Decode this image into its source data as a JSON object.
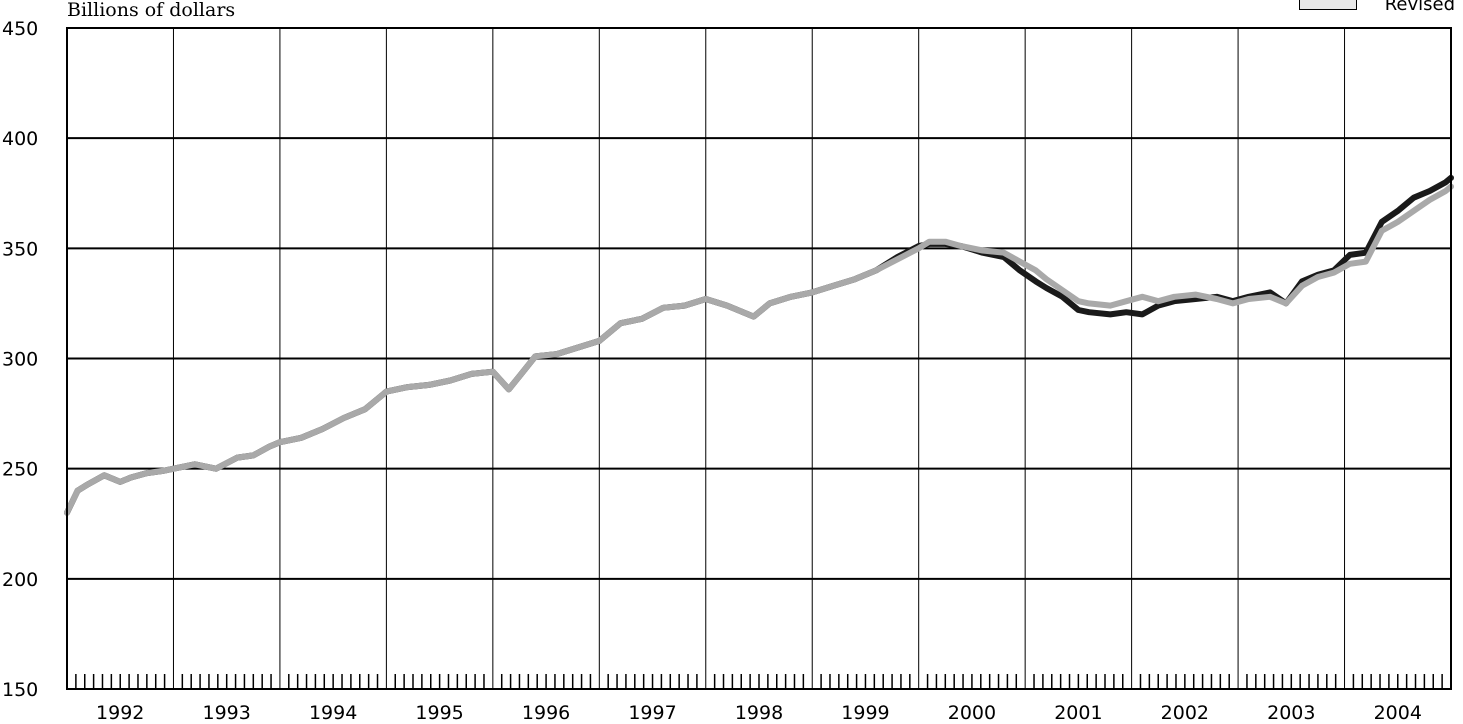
{
  "chart_data": {
    "type": "line",
    "ylabel": "Billions of dollars",
    "ylim": [
      150,
      450
    ],
    "yticks": [
      150,
      200,
      250,
      300,
      350,
      400,
      450
    ],
    "xlim": [
      1992,
      2005
    ],
    "year_labels": [
      "1992",
      "1993",
      "1994",
      "1995",
      "1996",
      "1997",
      "1998",
      "1999",
      "2000",
      "2001",
      "2002",
      "2003",
      "2004"
    ],
    "grid": true,
    "legend": {
      "position": "top-right",
      "visible_entries": [
        "Revised"
      ]
    },
    "series": [
      {
        "name": "",
        "color": "#1a1a1a",
        "x": [
          1992.0,
          1992.1,
          1992.2,
          1992.35,
          1992.5,
          1992.6,
          1992.75,
          1992.9,
          1993.0,
          1993.2,
          1993.4,
          1993.6,
          1993.75,
          1993.9,
          1994.0,
          1994.2,
          1994.4,
          1994.6,
          1994.8,
          1995.0,
          1995.2,
          1995.4,
          1995.6,
          1995.8,
          1996.0,
          1996.15,
          1996.25,
          1996.4,
          1996.6,
          1996.8,
          1997.0,
          1997.2,
          1997.4,
          1997.6,
          1997.8,
          1998.0,
          1998.2,
          1998.45,
          1998.6,
          1998.8,
          1999.0,
          1999.2,
          1999.4,
          1999.6,
          1999.8,
          2000.0,
          2000.1,
          2000.25,
          2000.4,
          2000.6,
          2000.8,
          2000.95,
          2001.1,
          2001.2,
          2001.35,
          2001.5,
          2001.6,
          2001.8,
          2001.95,
          2002.1,
          2002.25,
          2002.4,
          2002.6,
          2002.8,
          2002.95,
          2003.1,
          2003.3,
          2003.45,
          2003.6,
          2003.75,
          2003.9,
          2004.05,
          2004.2,
          2004.35,
          2004.5,
          2004.65,
          2004.8,
          2004.95,
          2005.0
        ],
        "y": [
          230,
          240,
          243,
          247,
          244,
          246,
          248,
          249,
          250,
          252,
          250,
          255,
          256,
          260,
          262,
          264,
          268,
          273,
          277,
          285,
          287,
          288,
          290,
          293,
          294,
          286,
          292,
          301,
          302,
          305,
          308,
          316,
          318,
          323,
          324,
          327,
          324,
          319,
          325,
          328,
          330,
          333,
          336,
          340,
          346,
          351,
          352,
          352,
          351,
          348,
          346,
          340,
          335,
          332,
          328,
          322,
          321,
          320,
          321,
          320,
          324,
          326,
          327,
          328,
          326,
          328,
          330,
          325,
          335,
          338,
          340,
          347,
          348,
          362,
          367,
          373,
          376,
          380,
          382
        ]
      },
      {
        "name": "Revised",
        "color": "#a9a9a9",
        "x": [
          1992.0,
          1992.1,
          1992.2,
          1992.35,
          1992.5,
          1992.6,
          1992.75,
          1992.9,
          1993.0,
          1993.2,
          1993.4,
          1993.6,
          1993.75,
          1993.9,
          1994.0,
          1994.2,
          1994.4,
          1994.6,
          1994.8,
          1995.0,
          1995.2,
          1995.4,
          1995.6,
          1995.8,
          1996.0,
          1996.15,
          1996.25,
          1996.4,
          1996.6,
          1996.8,
          1997.0,
          1997.2,
          1997.4,
          1997.6,
          1997.8,
          1998.0,
          1998.2,
          1998.45,
          1998.6,
          1998.8,
          1999.0,
          1999.2,
          1999.4,
          1999.6,
          1999.8,
          2000.0,
          2000.1,
          2000.25,
          2000.4,
          2000.6,
          2000.8,
          2000.95,
          2001.1,
          2001.2,
          2001.35,
          2001.5,
          2001.6,
          2001.8,
          2001.95,
          2002.1,
          2002.25,
          2002.4,
          2002.6,
          2002.8,
          2002.95,
          2003.1,
          2003.3,
          2003.45,
          2003.6,
          2003.75,
          2003.9,
          2004.05,
          2004.2,
          2004.35,
          2004.5,
          2004.65,
          2004.8,
          2004.95,
          2005.0
        ],
        "y": [
          230,
          240,
          243,
          247,
          244,
          246,
          248,
          249,
          250,
          252,
          250,
          255,
          256,
          260,
          262,
          264,
          268,
          273,
          277,
          285,
          287,
          288,
          290,
          293,
          294,
          286,
          292,
          301,
          302,
          305,
          308,
          316,
          318,
          323,
          324,
          327,
          324,
          319,
          325,
          328,
          330,
          333,
          336,
          340,
          345,
          350,
          353,
          353,
          351,
          349,
          348,
          344,
          340,
          336,
          331,
          326,
          325,
          324,
          326,
          328,
          326,
          328,
          329,
          327,
          325,
          327,
          328,
          325,
          333,
          337,
          339,
          343,
          344,
          358,
          362,
          367,
          372,
          376,
          378
        ]
      }
    ]
  }
}
